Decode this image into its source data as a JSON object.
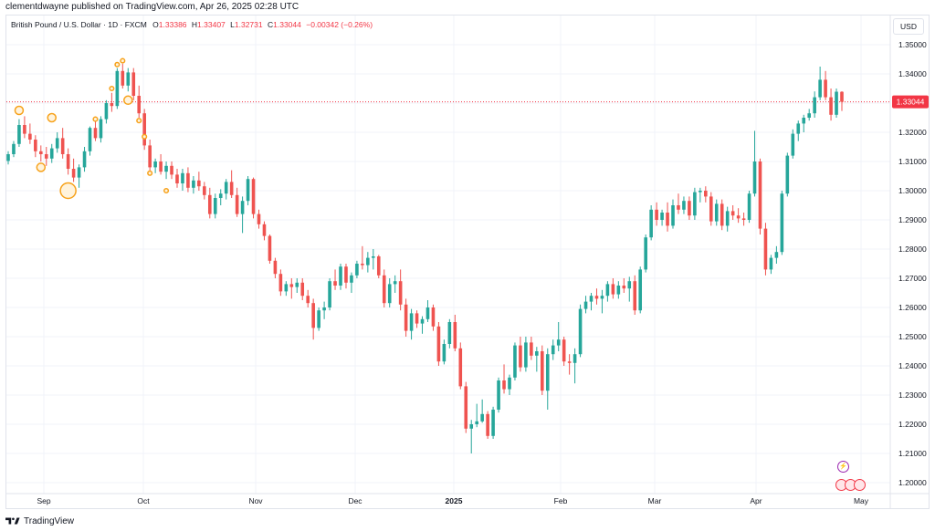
{
  "header": {
    "published_line": "clementdwayne published on TradingView.com, Apr 26, 2025 02:28 UTC"
  },
  "legend": {
    "symbol": "British Pound / U.S. Dollar · 1D · FXCM",
    "open_label": "O",
    "open": "1.33386",
    "high_label": "H",
    "high": "1.33407",
    "low_label": "L",
    "low": "1.32731",
    "close_label": "C",
    "close": "1.33044",
    "change": "−0.00342 (−0.26%)"
  },
  "currency_button": "USD",
  "last_price_label": "1.33044",
  "footer": {
    "brand": "TradingView"
  },
  "colors": {
    "up": "#26a69a",
    "down": "#ef5350",
    "price_line": "#f23645",
    "dividend_marker": "#f7a21b",
    "grid": "#f0f3fa",
    "event_flash": "#9c27b0"
  },
  "icons": [
    "tradingview-logo-icon",
    "lightning-event-icon",
    "uk-flag-icon",
    "us-flag-icon"
  ],
  "chart_data": {
    "type": "candlestick",
    "title": "British Pound / U.S. Dollar · 1D · FXCM",
    "y_axis_ticks": [
      "1.35000",
      "1.34000",
      "1.33000",
      "1.32000",
      "1.31000",
      "1.30000",
      "1.29000",
      "1.28000",
      "1.27000",
      "1.26000",
      "1.25000",
      "1.24000",
      "1.23000",
      "1.22000",
      "1.21000",
      "1.20000"
    ],
    "x_axis_ticks": [
      "Sep",
      "Oct",
      "Nov",
      "Dec",
      "2025",
      "Feb",
      "Mar",
      "Apr",
      "May"
    ],
    "ylim": [
      1.195,
      1.355
    ],
    "grid": true,
    "last_price": 1.33044,
    "candles": [
      [
        1.3102,
        1.3135,
        1.309,
        1.3125
      ],
      [
        1.3125,
        1.317,
        1.3115,
        1.316
      ],
      [
        1.316,
        1.3245,
        1.315,
        1.3225
      ],
      [
        1.3225,
        1.3255,
        1.318,
        1.3195
      ],
      [
        1.3195,
        1.323,
        1.316,
        1.3175
      ],
      [
        1.3175,
        1.319,
        1.3115,
        1.3135
      ],
      [
        1.3135,
        1.3155,
        1.31,
        1.3125
      ],
      [
        1.3125,
        1.315,
        1.3085,
        1.311
      ],
      [
        1.311,
        1.316,
        1.3095,
        1.3145
      ],
      [
        1.3145,
        1.32,
        1.313,
        1.318
      ],
      [
        1.318,
        1.3215,
        1.311,
        1.3125
      ],
      [
        1.3125,
        1.3145,
        1.3055,
        1.3075
      ],
      [
        1.3075,
        1.311,
        1.303,
        1.3045
      ],
      [
        1.3045,
        1.309,
        1.301,
        1.308
      ],
      [
        1.308,
        1.315,
        1.3065,
        1.3135
      ],
      [
        1.3135,
        1.322,
        1.312,
        1.3215
      ],
      [
        1.3215,
        1.3245,
        1.317,
        1.318
      ],
      [
        1.318,
        1.3255,
        1.3165,
        1.3245
      ],
      [
        1.3245,
        1.331,
        1.323,
        1.33
      ],
      [
        1.33,
        1.3335,
        1.327,
        1.329
      ],
      [
        1.329,
        1.342,
        1.328,
        1.341
      ],
      [
        1.341,
        1.3435,
        1.335,
        1.336
      ],
      [
        1.336,
        1.342,
        1.334,
        1.3405
      ],
      [
        1.3405,
        1.342,
        1.331,
        1.3325
      ],
      [
        1.3325,
        1.336,
        1.325,
        1.3265
      ],
      [
        1.3265,
        1.328,
        1.314,
        1.3155
      ],
      [
        1.3155,
        1.3175,
        1.3065,
        1.308
      ],
      [
        1.308,
        1.311,
        1.306,
        1.31
      ],
      [
        1.31,
        1.3125,
        1.3055,
        1.3065
      ],
      [
        1.3065,
        1.31,
        1.304,
        1.3085
      ],
      [
        1.3085,
        1.31,
        1.304,
        1.3055
      ],
      [
        1.3055,
        1.3075,
        1.301,
        1.3025
      ],
      [
        1.3025,
        1.3075,
        1.3,
        1.306
      ],
      [
        1.306,
        1.308,
        1.2995,
        1.301
      ],
      [
        1.301,
        1.305,
        1.299,
        1.3035
      ],
      [
        1.3035,
        1.3065,
        1.3,
        1.3015
      ],
      [
        1.3015,
        1.303,
        1.297,
        1.2985
      ],
      [
        1.2985,
        1.301,
        1.2905,
        1.292
      ],
      [
        1.292,
        1.299,
        1.2905,
        1.2975
      ],
      [
        1.2975,
        1.3005,
        1.295,
        1.299
      ],
      [
        1.299,
        1.304,
        1.297,
        1.303
      ],
      [
        1.303,
        1.307,
        1.2975,
        1.2985
      ],
      [
        1.2985,
        1.301,
        1.291,
        1.292
      ],
      [
        1.292,
        1.298,
        1.2855,
        1.2965
      ],
      [
        1.2965,
        1.305,
        1.295,
        1.304
      ],
      [
        1.304,
        1.3045,
        1.2905,
        1.292
      ],
      [
        1.292,
        1.2935,
        1.287,
        1.2885
      ],
      [
        1.2885,
        1.2895,
        1.283,
        1.2845
      ],
      [
        1.2845,
        1.285,
        1.275,
        1.276
      ],
      [
        1.276,
        1.277,
        1.27,
        1.2715
      ],
      [
        1.2715,
        1.273,
        1.264,
        1.2655
      ],
      [
        1.2655,
        1.269,
        1.264,
        1.268
      ],
      [
        1.268,
        1.27,
        1.263,
        1.267
      ],
      [
        1.267,
        1.27,
        1.265,
        1.2685
      ],
      [
        1.2685,
        1.27,
        1.2625,
        1.264
      ],
      [
        1.264,
        1.266,
        1.26,
        1.2615
      ],
      [
        1.2615,
        1.263,
        1.249,
        1.253
      ],
      [
        1.253,
        1.26,
        1.252,
        1.259
      ],
      [
        1.259,
        1.262,
        1.256,
        1.26
      ],
      [
        1.26,
        1.27,
        1.259,
        1.269
      ],
      [
        1.269,
        1.273,
        1.266,
        1.2675
      ],
      [
        1.2675,
        1.275,
        1.266,
        1.274
      ],
      [
        1.274,
        1.275,
        1.2665,
        1.2685
      ],
      [
        1.2685,
        1.272,
        1.265,
        1.271
      ],
      [
        1.271,
        1.276,
        1.27,
        1.275
      ],
      [
        1.275,
        1.281,
        1.273,
        1.2745
      ],
      [
        1.2745,
        1.279,
        1.272,
        1.277
      ],
      [
        1.277,
        1.28,
        1.273,
        1.2775
      ],
      [
        1.2775,
        1.278,
        1.27,
        1.271
      ],
      [
        1.271,
        1.273,
        1.26,
        1.2615
      ],
      [
        1.2615,
        1.27,
        1.26,
        1.268
      ],
      [
        1.268,
        1.271,
        1.265,
        1.269
      ],
      [
        1.269,
        1.273,
        1.259,
        1.261
      ],
      [
        1.261,
        1.263,
        1.25,
        1.252
      ],
      [
        1.252,
        1.2595,
        1.249,
        1.258
      ],
      [
        1.258,
        1.259,
        1.253,
        1.2545
      ],
      [
        1.2545,
        1.257,
        1.251,
        1.256
      ],
      [
        1.256,
        1.2625,
        1.255,
        1.26
      ],
      [
        1.26,
        1.261,
        1.252,
        1.2535
      ],
      [
        1.2535,
        1.255,
        1.24,
        1.2415
      ],
      [
        1.2415,
        1.249,
        1.2405,
        1.2475
      ],
      [
        1.2475,
        1.256,
        1.246,
        1.255
      ],
      [
        1.255,
        1.2575,
        1.245,
        1.246
      ],
      [
        1.246,
        1.248,
        1.232,
        1.233
      ],
      [
        1.233,
        1.2345,
        1.217,
        1.2185
      ],
      [
        1.2185,
        1.2215,
        1.21,
        1.22
      ],
      [
        1.22,
        1.227,
        1.219,
        1.221
      ],
      [
        1.221,
        1.2285,
        1.2205,
        1.2235
      ],
      [
        1.2235,
        1.2245,
        1.215,
        1.216
      ],
      [
        1.216,
        1.226,
        1.215,
        1.225
      ],
      [
        1.225,
        1.236,
        1.224,
        1.235
      ],
      [
        1.235,
        1.2405,
        1.2305,
        1.232
      ],
      [
        1.232,
        1.237,
        1.23,
        1.236
      ],
      [
        1.236,
        1.248,
        1.235,
        1.247
      ],
      [
        1.247,
        1.25,
        1.238,
        1.2395
      ],
      [
        1.2395,
        1.25,
        1.238,
        1.248
      ],
      [
        1.248,
        1.25,
        1.242,
        1.2435
      ],
      [
        1.2435,
        1.2465,
        1.238,
        1.245
      ],
      [
        1.245,
        1.247,
        1.23,
        1.2315
      ],
      [
        1.2315,
        1.246,
        1.225,
        1.244
      ],
      [
        1.244,
        1.249,
        1.242,
        1.247
      ],
      [
        1.247,
        1.255,
        1.245,
        1.249
      ],
      [
        1.249,
        1.25,
        1.24,
        1.2415
      ],
      [
        1.2415,
        1.244,
        1.237,
        1.241
      ],
      [
        1.241,
        1.246,
        1.234,
        1.244
      ],
      [
        1.244,
        1.261,
        1.243,
        1.2595
      ],
      [
        1.2595,
        1.264,
        1.258,
        1.262
      ],
      [
        1.262,
        1.265,
        1.259,
        1.264
      ],
      [
        1.264,
        1.2665,
        1.261,
        1.263
      ],
      [
        1.263,
        1.266,
        1.258,
        1.264
      ],
      [
        1.264,
        1.269,
        1.262,
        1.268
      ],
      [
        1.268,
        1.27,
        1.263,
        1.2645
      ],
      [
        1.2645,
        1.269,
        1.263,
        1.2675
      ],
      [
        1.2675,
        1.27,
        1.265,
        1.2665
      ],
      [
        1.2665,
        1.2705,
        1.262,
        1.269
      ],
      [
        1.269,
        1.271,
        1.2575,
        1.259
      ],
      [
        1.259,
        1.274,
        1.258,
        1.273
      ],
      [
        1.273,
        1.285,
        1.272,
        1.284
      ],
      [
        1.284,
        1.295,
        1.283,
        1.2935
      ],
      [
        1.2935,
        1.296,
        1.288,
        1.29
      ],
      [
        1.29,
        1.2935,
        1.288,
        1.2925
      ],
      [
        1.2925,
        1.296,
        1.286,
        1.288
      ],
      [
        1.288,
        1.297,
        1.287,
        1.295
      ],
      [
        1.295,
        1.299,
        1.292,
        1.2935
      ],
      [
        1.2935,
        1.298,
        1.292,
        1.2965
      ],
      [
        1.2965,
        1.298,
        1.29,
        1.2915
      ],
      [
        1.2915,
        1.301,
        1.29,
        1.2995
      ],
      [
        1.2995,
        1.301,
        1.296,
        1.3
      ],
      [
        1.3,
        1.3015,
        1.296,
        1.298
      ],
      [
        1.298,
        1.2995,
        1.288,
        1.2895
      ],
      [
        1.2895,
        1.297,
        1.288,
        1.2955
      ],
      [
        1.2955,
        1.297,
        1.2865,
        1.288
      ],
      [
        1.288,
        1.2945,
        1.286,
        1.293
      ],
      [
        1.293,
        1.295,
        1.29,
        1.2915
      ],
      [
        1.2915,
        1.294,
        1.289,
        1.2905
      ],
      [
        1.2905,
        1.2925,
        1.288,
        1.29
      ],
      [
        1.29,
        1.3,
        1.289,
        1.299
      ],
      [
        1.299,
        1.3205,
        1.298,
        1.31
      ],
      [
        1.31,
        1.311,
        1.285,
        1.287
      ],
      [
        1.287,
        1.289,
        1.271,
        1.273
      ],
      [
        1.273,
        1.278,
        1.2715,
        1.277
      ],
      [
        1.277,
        1.281,
        1.275,
        1.279
      ],
      [
        1.279,
        1.3,
        1.278,
        1.299
      ],
      [
        1.299,
        1.313,
        1.298,
        1.312
      ],
      [
        1.312,
        1.321,
        1.311,
        1.3195
      ],
      [
        1.3195,
        1.324,
        1.317,
        1.323
      ],
      [
        1.323,
        1.326,
        1.32,
        1.325
      ],
      [
        1.325,
        1.328,
        1.324,
        1.3265
      ],
      [
        1.3265,
        1.334,
        1.325,
        1.332
      ],
      [
        1.332,
        1.3425,
        1.331,
        1.338
      ],
      [
        1.338,
        1.341,
        1.331,
        1.332
      ],
      [
        1.332,
        1.335,
        1.324,
        1.326
      ],
      [
        1.326,
        1.335,
        1.325,
        1.3339
      ],
      [
        1.33386,
        1.33407,
        1.32731,
        1.33044
      ]
    ],
    "dividend_markers": [
      {
        "i": 2,
        "price": 1.3275,
        "size": 1
      },
      {
        "i": 6,
        "price": 1.308,
        "size": 1
      },
      {
        "i": 8,
        "price": 1.325,
        "size": 1
      },
      {
        "i": 11,
        "price": 1.3,
        "size": 2
      },
      {
        "i": 16,
        "price": 1.3245,
        "size": 0
      },
      {
        "i": 19,
        "price": 1.335,
        "size": 0
      },
      {
        "i": 20,
        "price": 1.3432,
        "size": 0
      },
      {
        "i": 21,
        "price": 1.3445,
        "size": 0
      },
      {
        "i": 22,
        "price": 1.331,
        "size": 1
      },
      {
        "i": 24,
        "price": 1.324,
        "size": 0
      },
      {
        "i": 25,
        "price": 1.3185,
        "size": 0
      },
      {
        "i": 26,
        "price": 1.306,
        "size": 0
      },
      {
        "i": 29,
        "price": 1.3,
        "size": 0
      }
    ]
  }
}
